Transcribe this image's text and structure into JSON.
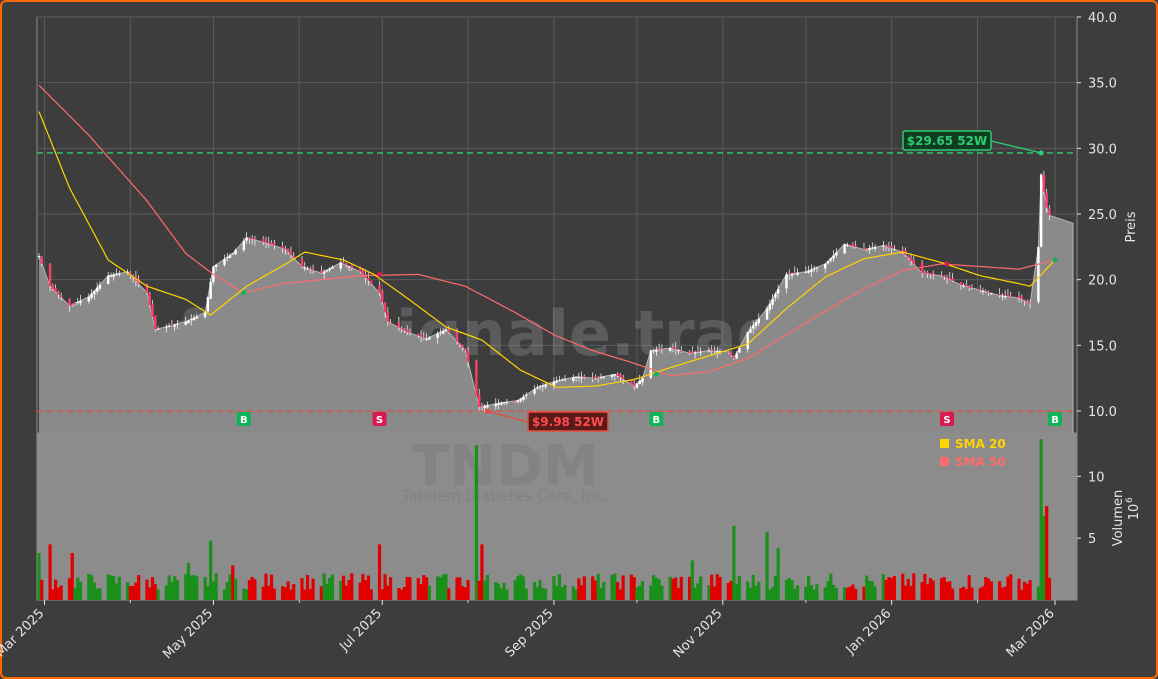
{
  "chart_data": {
    "type": "candlestick",
    "ticker": "TNDM",
    "watermark_site": "forexsignale.trade",
    "watermark_company": "Tandem Diabetes Care, Inc.",
    "price_axis": {
      "label": "Preis",
      "ylim": [
        9.0,
        40.0
      ],
      "ticks": [
        "10.0",
        "15.0",
        "20.0",
        "25.0",
        "30.0",
        "35.0",
        "40.0"
      ]
    },
    "volume_axis": {
      "label": "Volumen",
      "multiplier": "10",
      "multiplier_exp": "6",
      "ylim": [
        0,
        13.5
      ],
      "ticks": [
        "5",
        "10"
      ]
    },
    "x_range": [
      "2025-02-27",
      "2026-03-01"
    ],
    "x_ticks": [
      {
        "date": "2025-03-01",
        "label": "Mar 2025"
      },
      {
        "date": "2025-05-01",
        "label": "May 2025"
      },
      {
        "date": "2025-07-01",
        "label": "Jul 2025"
      },
      {
        "date": "2025-09-01",
        "label": "Sep 2025"
      },
      {
        "date": "2025-11-01",
        "label": "Nov 2025"
      },
      {
        "date": "2026-01-01",
        "label": "Jan 2026"
      },
      {
        "date": "2026-03-01",
        "label": "Mar 2026"
      }
    ],
    "minor_x_ticks": [
      "2025-04-01",
      "2025-06-01",
      "2025-08-01",
      "2025-10-01",
      "2025-12-01",
      "2026-02-01"
    ],
    "close_keypoints": [
      [
        "2025-02-27",
        21.8
      ],
      [
        "2025-03-03",
        19.5
      ],
      [
        "2025-03-10",
        18.0
      ],
      [
        "2025-03-17",
        18.7
      ],
      [
        "2025-03-24",
        20.3
      ],
      [
        "2025-03-31",
        20.6
      ],
      [
        "2025-04-07",
        19.0
      ],
      [
        "2025-04-10",
        16.2
      ],
      [
        "2025-04-21",
        16.8
      ],
      [
        "2025-04-28",
        17.5
      ],
      [
        "2025-05-01",
        21.0
      ],
      [
        "2025-05-08",
        22.0
      ],
      [
        "2025-05-13",
        23.2
      ],
      [
        "2025-05-20",
        22.8
      ],
      [
        "2025-05-27",
        22.3
      ],
      [
        "2025-06-02",
        21.0
      ],
      [
        "2025-06-09",
        20.5
      ],
      [
        "2025-06-16",
        21.3
      ],
      [
        "2025-06-23",
        20.6
      ],
      [
        "2025-06-30",
        19.0
      ],
      [
        "2025-07-03",
        16.8
      ],
      [
        "2025-07-10",
        16.0
      ],
      [
        "2025-07-17",
        15.5
      ],
      [
        "2025-07-24",
        16.2
      ],
      [
        "2025-07-31",
        14.6
      ],
      [
        "2025-08-05",
        10.3
      ],
      [
        "2025-08-12",
        10.6
      ],
      [
        "2025-08-19",
        10.8
      ],
      [
        "2025-08-26",
        11.8
      ],
      [
        "2025-09-02",
        12.3
      ],
      [
        "2025-09-09",
        12.6
      ],
      [
        "2025-09-16",
        12.5
      ],
      [
        "2025-09-23",
        12.8
      ],
      [
        "2025-09-30",
        11.9
      ],
      [
        "2025-10-03",
        12.5
      ],
      [
        "2025-10-06",
        14.6
      ],
      [
        "2025-10-13",
        14.8
      ],
      [
        "2025-10-20",
        14.4
      ],
      [
        "2025-10-27",
        14.6
      ],
      [
        "2025-11-03",
        14.5
      ],
      [
        "2025-11-05",
        14.0
      ],
      [
        "2025-11-10",
        16.0
      ],
      [
        "2025-11-17",
        17.8
      ],
      [
        "2025-11-24",
        20.4
      ],
      [
        "2025-12-01",
        20.6
      ],
      [
        "2025-12-08",
        21.2
      ],
      [
        "2025-12-15",
        22.7
      ],
      [
        "2025-12-22",
        22.3
      ],
      [
        "2025-12-29",
        22.6
      ],
      [
        "2026-01-05",
        22.1
      ],
      [
        "2026-01-12",
        20.5
      ],
      [
        "2026-01-19",
        20.3
      ],
      [
        "2026-01-26",
        19.6
      ],
      [
        "2026-02-02",
        19.2
      ],
      [
        "2026-02-09",
        18.8
      ],
      [
        "2026-02-16",
        18.6
      ],
      [
        "2026-02-20",
        18.2
      ],
      [
        "2026-02-23",
        22.5
      ],
      [
        "2026-02-24",
        28.0
      ],
      [
        "2026-02-25",
        26.7
      ],
      [
        "2026-02-26",
        25.5
      ],
      [
        "2026-02-27",
        24.9
      ],
      [
        "2026-03-01",
        24.3
      ]
    ],
    "sma20_keypoints": [
      [
        "2025-02-27",
        32.8
      ],
      [
        "2025-03-10",
        27.0
      ],
      [
        "2025-03-24",
        21.5
      ],
      [
        "2025-04-07",
        19.5
      ],
      [
        "2025-04-21",
        18.5
      ],
      [
        "2025-04-30",
        17.3
      ],
      [
        "2025-05-13",
        19.5
      ],
      [
        "2025-05-28",
        21.3
      ],
      [
        "2025-06-03",
        22.1
      ],
      [
        "2025-06-17",
        21.5
      ],
      [
        "2025-06-28",
        20.4
      ],
      [
        "2025-07-10",
        18.6
      ],
      [
        "2025-07-24",
        16.4
      ],
      [
        "2025-08-06",
        15.4
      ],
      [
        "2025-08-20",
        13.1
      ],
      [
        "2025-09-02",
        11.8
      ],
      [
        "2025-09-16",
        11.9
      ],
      [
        "2025-09-30",
        12.4
      ],
      [
        "2025-10-13",
        13.3
      ],
      [
        "2025-10-27",
        14.2
      ],
      [
        "2025-11-10",
        15.1
      ],
      [
        "2025-11-24",
        17.8
      ],
      [
        "2025-12-08",
        20.2
      ],
      [
        "2025-12-22",
        21.6
      ],
      [
        "2026-01-05",
        22.1
      ],
      [
        "2026-01-19",
        21.3
      ],
      [
        "2026-02-02",
        20.3
      ],
      [
        "2026-02-16",
        19.7
      ],
      [
        "2026-02-20",
        19.5
      ],
      [
        "2026-03-01",
        21.5
      ]
    ],
    "sma50_keypoints": [
      [
        "2025-02-27",
        34.8
      ],
      [
        "2025-03-17",
        31.0
      ],
      [
        "2025-04-07",
        26.0
      ],
      [
        "2025-04-21",
        22.0
      ],
      [
        "2025-05-01",
        20.4
      ],
      [
        "2025-05-12",
        19.0
      ],
      [
        "2025-05-26",
        19.7
      ],
      [
        "2025-06-09",
        20.0
      ],
      [
        "2025-06-23",
        20.3
      ],
      [
        "2025-07-14",
        20.4
      ],
      [
        "2025-07-31",
        19.5
      ],
      [
        "2025-08-18",
        17.5
      ],
      [
        "2025-09-01",
        15.8
      ],
      [
        "2025-09-15",
        14.6
      ],
      [
        "2025-09-29",
        13.7
      ],
      [
        "2025-10-13",
        12.7
      ],
      [
        "2025-10-27",
        13.0
      ],
      [
        "2025-11-10",
        14.0
      ],
      [
        "2025-11-24",
        15.8
      ],
      [
        "2025-12-08",
        17.6
      ],
      [
        "2025-12-22",
        19.3
      ],
      [
        "2026-01-05",
        20.7
      ],
      [
        "2026-01-19",
        21.2
      ],
      [
        "2026-02-02",
        21.0
      ],
      [
        "2026-02-16",
        20.8
      ],
      [
        "2026-03-01",
        21.5
      ]
    ],
    "last_price": 24.3,
    "high_52w": {
      "label": "$29.65 52W",
      "value": 29.65,
      "date": "2026-02-24"
    },
    "low_52w": {
      "label": "$9.98 52W",
      "value": 9.98,
      "date": "2025-08-08"
    },
    "signals": [
      {
        "label": "B",
        "type": "buy",
        "date": "2025-05-12",
        "price": 19.0
      },
      {
        "label": "S",
        "type": "sell",
        "date": "2025-06-30",
        "price": 20.4
      },
      {
        "label": "B",
        "type": "buy",
        "date": "2025-10-08",
        "price": 12.8
      },
      {
        "label": "S",
        "type": "sell",
        "date": "2026-01-21",
        "price": 21.2
      },
      {
        "label": "B",
        "type": "buy",
        "date": "2026-03-01",
        "price": 21.5
      }
    ],
    "volume_spikes": [
      [
        "2025-02-27",
        3.8,
        "g"
      ],
      [
        "2025-03-03",
        4.5,
        "r"
      ],
      [
        "2025-03-11",
        3.8,
        "r"
      ],
      [
        "2025-04-22",
        3.0,
        "g"
      ],
      [
        "2025-04-30",
        4.8,
        "g"
      ],
      [
        "2025-05-08",
        2.8,
        "r"
      ],
      [
        "2025-06-30",
        4.5,
        "r"
      ],
      [
        "2025-08-04",
        12.5,
        "g"
      ],
      [
        "2025-08-06",
        4.5,
        "r"
      ],
      [
        "2025-10-21",
        3.2,
        "g"
      ],
      [
        "2025-11-05",
        6.0,
        "g"
      ],
      [
        "2025-11-17",
        5.5,
        "g"
      ],
      [
        "2025-11-21",
        4.2,
        "g"
      ],
      [
        "2026-02-24",
        13.0,
        "g"
      ],
      [
        "2026-02-25",
        6.8,
        "g"
      ],
      [
        "2026-02-26",
        7.6,
        "r"
      ]
    ],
    "volume_base": 1.5,
    "legend": [
      {
        "name": "SMA 20",
        "color": "#ffd400"
      },
      {
        "name": "SMA 50",
        "color": "#ff6b6b"
      }
    ],
    "colors": {
      "background": "#3d3d3d",
      "price_area": "#8a8a8a",
      "grid": "#5a5a5a",
      "up": "#1a8f1a",
      "down": "#e00000",
      "high_line": "#2ecc71",
      "low_line": "#e74c3c",
      "buy": "#11b35a",
      "sell": "#d81b4f",
      "border": "#ff6a00"
    }
  }
}
